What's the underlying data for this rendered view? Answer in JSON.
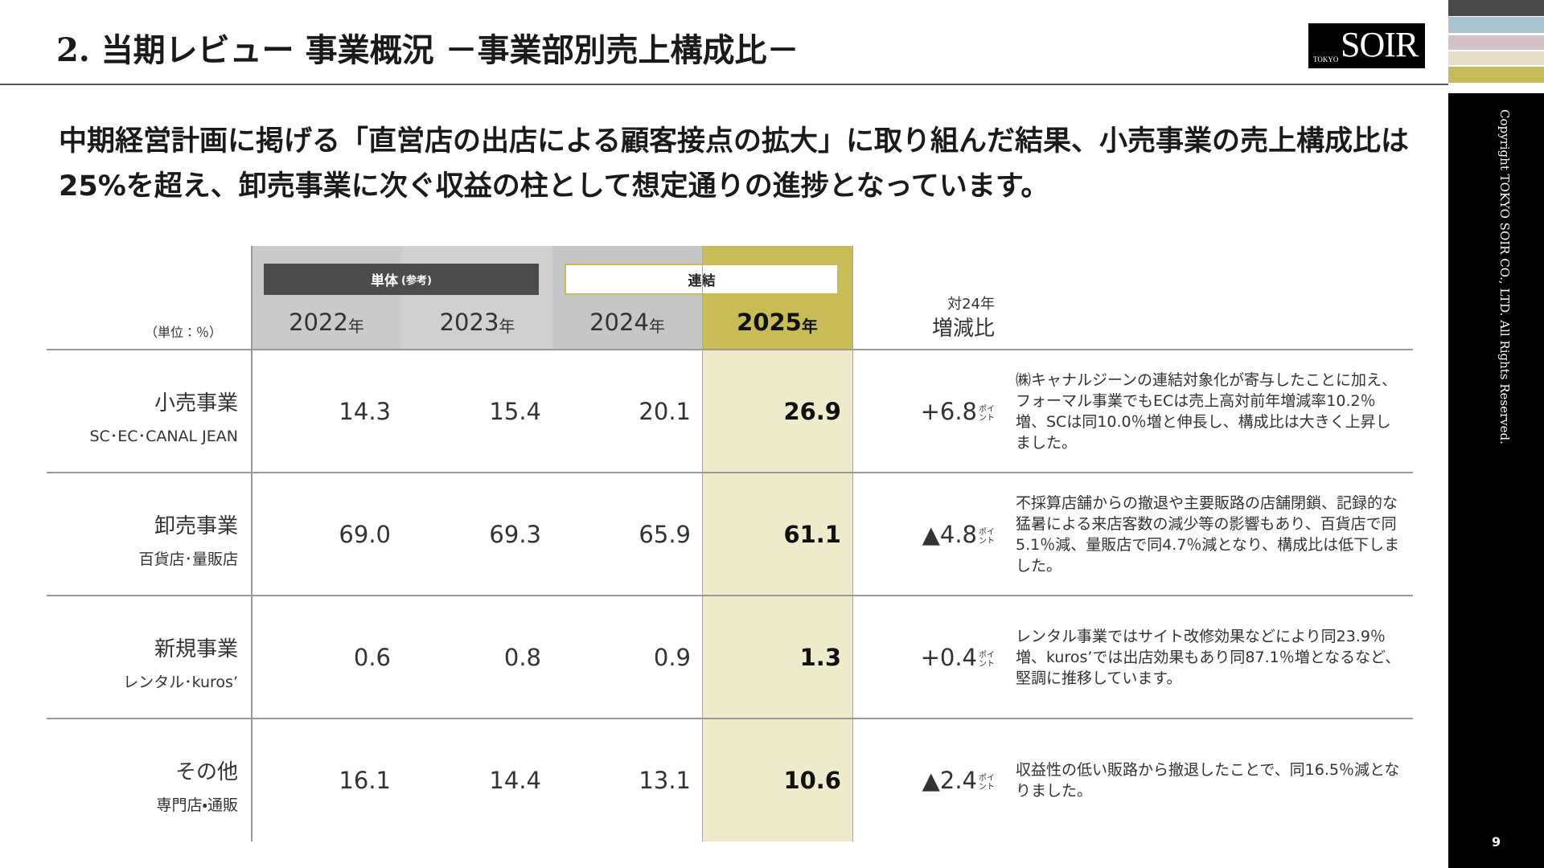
{
  "header": {
    "title": "2. 当期レビュー 事業概況 －事業部別売上構成比－",
    "logo_small": "TOKYO",
    "logo": "SOIR"
  },
  "lead": "中期経営計画に掲げる「直営店の出店による顧客接点の拡大」に取り組んだ結果、小売事業の売上構成比は25%を超え、卸売事業に次ぐ収益の柱として想定通りの進捗となっています。",
  "table": {
    "unit": "（単位：％）",
    "groups": [
      {
        "label": "単体",
        "note": "(参考)"
      },
      {
        "label": "連結"
      }
    ],
    "columns": [
      {
        "year": "2022",
        "unit": "年"
      },
      {
        "year": "2023",
        "unit": "年"
      },
      {
        "year": "2024",
        "unit": "年"
      },
      {
        "year": "2025",
        "unit": "年"
      }
    ],
    "change_header": [
      "対24年",
      "増減比"
    ],
    "rows": [
      {
        "name": "小売事業",
        "sub": "SC･EC･CANAL JEAN",
        "values": [
          "14.3",
          "15.4",
          "20.1",
          "26.9"
        ],
        "change": "+6.8",
        "change_unit": "ポイント",
        "note": "㈱キャナルジーンの連結対象化が寄与したことに加え、フォーマル事業でもECは売上高対前年増減率10.2％増、SCは同10.0％増と伸長し、構成比は大きく上昇しました。"
      },
      {
        "name": "卸売事業",
        "sub": "百貨店･量販店",
        "values": [
          "69.0",
          "69.3",
          "65.9",
          "61.1"
        ],
        "change": "▲4.8",
        "change_unit": "ポイント",
        "note": "不採算店舗からの撤退や主要販路の店舗閉鎖、記録的な猛暑による来店客数の減少等の影響もあり、百貨店で同5.1％減、量販店で同4.7％減となり、構成比は低下しました。"
      },
      {
        "name": "新規事業",
        "sub": "レンタル･kuros’",
        "values": [
          "0.6",
          "0.8",
          "0.9",
          "1.3"
        ],
        "change": "+0.4",
        "change_unit": "ポイント",
        "note": "レンタル事業ではサイト改修効果などにより同23.9％増、kuros’では出店効果もあり同87.1％増となるなど、堅調に推移しています。"
      },
      {
        "name": "その他",
        "sub": "専門店・通販",
        "values": [
          "16.1",
          "14.4",
          "13.1",
          "10.6"
        ],
        "change": "▲2.4",
        "change_unit": "ポイント",
        "note": "収益性の低い販路から撤退したことで、同16.5％減となりました。"
      }
    ]
  },
  "copyright": "Copyright TOKYO SOIR CO., LTD. All Rights Reserved.",
  "page": "9"
}
